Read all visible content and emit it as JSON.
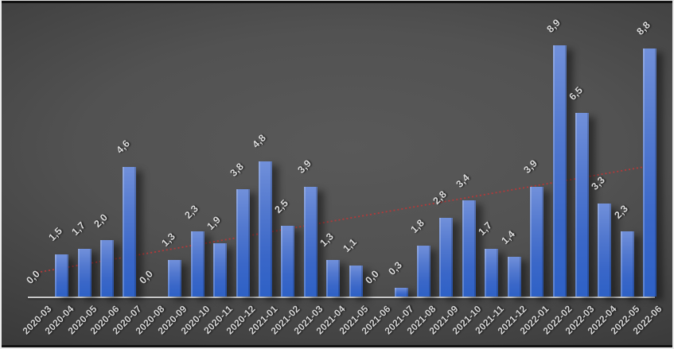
{
  "chart_data": {
    "type": "bar",
    "title": "",
    "xlabel": "",
    "ylabel": "",
    "ylim": [
      0,
      10
    ],
    "grid": false,
    "legend": null,
    "decimal_separator": ",",
    "label_rotation_deg": -45,
    "categories": [
      "2020-03",
      "2020-04",
      "2020-05",
      "2020-06",
      "2020-07",
      "2020-08",
      "2020-09",
      "2020-10",
      "2020-11",
      "2020-12",
      "2021-01",
      "2021-02",
      "2021-03",
      "2021-04",
      "2021-05",
      "2021-06",
      "2021-07",
      "2021-08",
      "2021-09",
      "2021-10",
      "2021-11",
      "2021-12",
      "2022-01",
      "2022-02",
      "2022-03",
      "2022-04",
      "2022-05",
      "2022-06"
    ],
    "values": [
      0.0,
      1.5,
      1.7,
      2.0,
      4.6,
      0.0,
      1.3,
      2.3,
      1.9,
      3.8,
      4.8,
      2.5,
      3.9,
      1.3,
      1.1,
      0.0,
      0.3,
      1.8,
      2.8,
      3.4,
      1.7,
      1.4,
      3.9,
      8.9,
      6.5,
      3.3,
      2.3,
      8.8
    ],
    "value_labels": [
      "0,0",
      "1,5",
      "1,7",
      "2,0",
      "4,6",
      "0,0",
      "1,3",
      "2,3",
      "1,9",
      "3,8",
      "4,8",
      "2,5",
      "3,9",
      "1,3",
      "1,1",
      "0,0",
      "0,3",
      "1,8",
      "2,8",
      "3,4",
      "1,7",
      "1,4",
      "3,9",
      "8,9",
      "6,5",
      "3,3",
      "2,3",
      "8,8"
    ],
    "colors": {
      "bar": "#4472c4",
      "bar_gradient_top": "#7190da",
      "bar_gradient_bottom": "#2e61c6",
      "data_label": "#dcdcdc",
      "axis_label": "#d6d6d6",
      "axis_line": "#c8c8c8",
      "trendline": "#b23a3a",
      "background_center": "#595959",
      "background_edge": "#282828"
    },
    "trendline": {
      "style": "dotted",
      "start_value": 0.85,
      "end_value": 4.65,
      "color": "#b23a3a"
    }
  }
}
